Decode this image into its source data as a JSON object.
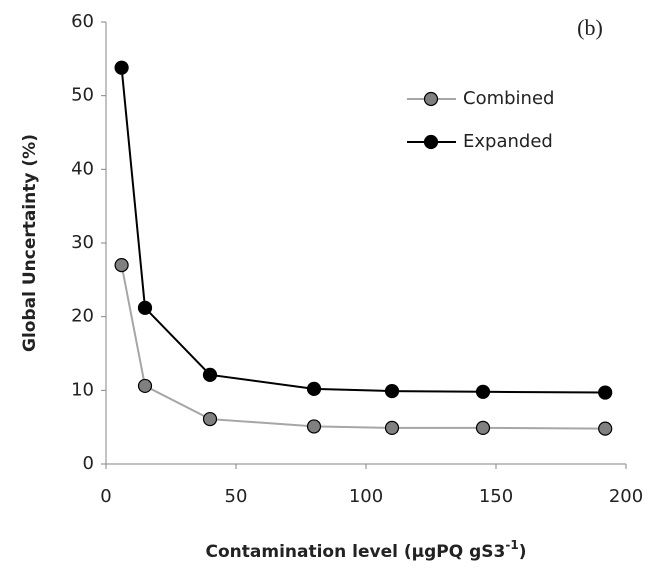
{
  "chart_data": {
    "type": "line",
    "annotation": "(b)",
    "x_label": [
      "Contamination level (µgPQ gS3",
      "-1",
      ")"
    ],
    "y_label": "Global Uncertainty (%)",
    "x": [
      6,
      15,
      40,
      80,
      110,
      145,
      192
    ],
    "series": [
      {
        "name": "Combined",
        "color": "#808080",
        "line_color": "#a6a6a6",
        "values": [
          27,
          10.6,
          6.1,
          5.1,
          4.9,
          4.9,
          4.8
        ]
      },
      {
        "name": "Expanded",
        "color": "#000000",
        "line_color": "#000000",
        "values": [
          53.8,
          21.2,
          12.1,
          10.2,
          9.9,
          9.8,
          9.7
        ]
      }
    ],
    "xlim": [
      0,
      200
    ],
    "xticks": [
      0,
      50,
      100,
      150,
      200
    ],
    "ylim": [
      0,
      60
    ],
    "yticks": [
      0,
      10,
      20,
      30,
      40,
      50,
      60
    ],
    "grid": false,
    "legend": "upper-right"
  }
}
